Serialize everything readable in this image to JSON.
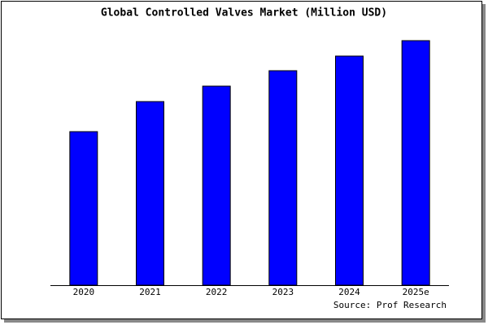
{
  "chart_data": {
    "type": "bar",
    "title": "Global Controlled Valves Market (Million USD)",
    "categories": [
      "2020",
      "2021",
      "2022",
      "2023",
      "2024",
      "2025e"
    ],
    "values": [
      189,
      226,
      245,
      264,
      282,
      301
    ],
    "color": "#0000ff",
    "ylim": [
      0,
      303
    ],
    "source": "Source: Prof Research"
  }
}
